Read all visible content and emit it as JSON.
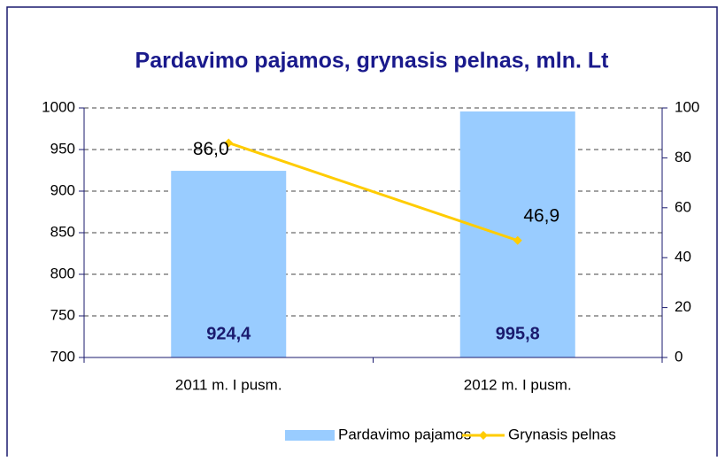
{
  "chart_data": {
    "type": "bar_line",
    "title": "Pardavimo pajamos, grynasis pelnas, mln. Lt",
    "categories": [
      "2011 m. I pusm.",
      "2012 m. I pusm."
    ],
    "series": [
      {
        "name": "Pardavimo pajamos",
        "color": "#99ccff",
        "type": "bar",
        "axis": "y",
        "values": [
          924.4,
          995.8
        ],
        "value_labels": [
          "924,4",
          "995,8"
        ]
      },
      {
        "name": "Grynasis pelnas",
        "color": "#ffcc00",
        "type": "line",
        "axis": "y2",
        "values": [
          86.0,
          46.9
        ],
        "value_labels": [
          "86,0",
          "46,9"
        ]
      }
    ],
    "ylim": [
      700,
      1000
    ],
    "yticks": [
      700,
      750,
      800,
      850,
      900,
      950,
      1000
    ],
    "y2lim": [
      0,
      100
    ],
    "y2ticks": [
      0,
      20,
      40,
      60,
      80,
      100
    ],
    "grid": true,
    "legend": "bottom"
  }
}
